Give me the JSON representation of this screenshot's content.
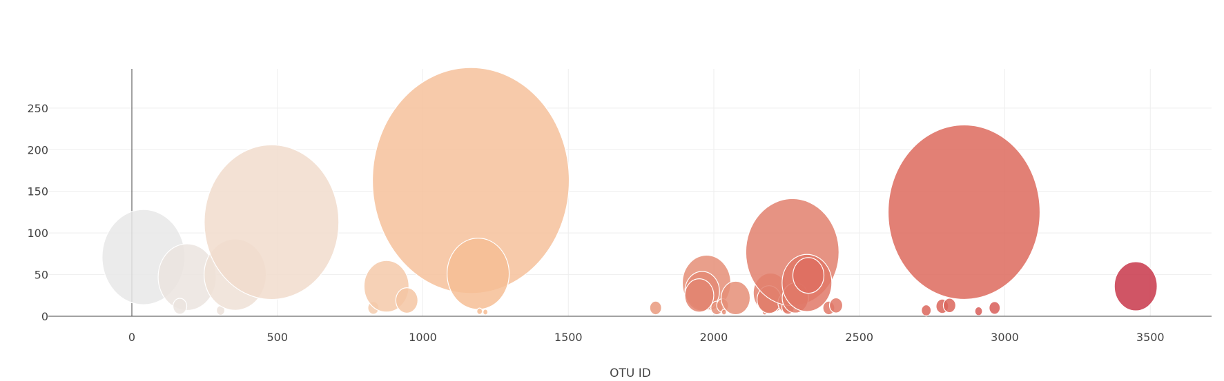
{
  "chart_data": {
    "type": "scatter",
    "subtype": "bubble",
    "xlabel": "OTU ID",
    "xlim": [
      -280,
      3700
    ],
    "ylim": [
      -5,
      300
    ],
    "x_ticks": [
      0,
      500,
      1000,
      1500,
      2000,
      2500,
      3000,
      3500
    ],
    "y_ticks": [
      0,
      50,
      100,
      150,
      200,
      250
    ],
    "grid": true,
    "colorscale": [
      "#e8e8e8",
      "#f4d8c4",
      "#f6b98d",
      "#e58e77",
      "#dd6a5d",
      "#c8374a"
    ],
    "points": [
      {
        "x": 40,
        "y": 71,
        "r": 12,
        "c": 0
      },
      {
        "x": 190,
        "y": 47,
        "r": 8.4,
        "c": 0.05
      },
      {
        "x": 165,
        "y": 12,
        "r": 2,
        "c": 0.05
      },
      {
        "x": 305,
        "y": 7,
        "r": 1.2,
        "c": 0.07
      },
      {
        "x": 355,
        "y": 50,
        "r": 9,
        "c": 0.1
      },
      {
        "x": 480,
        "y": 113,
        "r": 19.5,
        "c": 0.15
      },
      {
        "x": 830,
        "y": 10,
        "r": 1.6,
        "c": 0.28
      },
      {
        "x": 875,
        "y": 36,
        "r": 6.5,
        "c": 0.3
      },
      {
        "x": 945,
        "y": 19,
        "r": 3.2,
        "c": 0.32
      },
      {
        "x": 1165,
        "y": 163,
        "r": 28.5,
        "c": 0.35
      },
      {
        "x": 1190,
        "y": 51,
        "r": 9,
        "c": 0.37
      },
      {
        "x": 1195,
        "y": 6,
        "r": 0.8,
        "c": 0.38
      },
      {
        "x": 1215,
        "y": 5,
        "r": 0.7,
        "c": 0.38
      },
      {
        "x": 1800,
        "y": 10,
        "r": 1.7,
        "c": 0.55
      },
      {
        "x": 1975,
        "y": 40,
        "r": 7,
        "c": 0.6
      },
      {
        "x": 1960,
        "y": 30,
        "r": 5,
        "c": 0.62
      },
      {
        "x": 1950,
        "y": 25,
        "r": 4.2,
        "c": 0.65
      },
      {
        "x": 2010,
        "y": 10,
        "r": 1.7,
        "c": 0.6
      },
      {
        "x": 2030,
        "y": 13,
        "r": 1.7,
        "c": 0.6
      },
      {
        "x": 2075,
        "y": 22,
        "r": 4.2,
        "c": 0.6
      },
      {
        "x": 2035,
        "y": 5,
        "r": 0.7,
        "c": 0.6
      },
      {
        "x": 2175,
        "y": 5,
        "r": 0.7,
        "c": 0.65
      },
      {
        "x": 2195,
        "y": 28,
        "r": 5,
        "c": 0.68
      },
      {
        "x": 2190,
        "y": 20,
        "r": 3.5,
        "c": 0.7
      },
      {
        "x": 2250,
        "y": 16,
        "r": 2.5,
        "c": 0.68
      },
      {
        "x": 2255,
        "y": 11,
        "r": 1.8,
        "c": 0.72
      },
      {
        "x": 2270,
        "y": 77,
        "r": 13.5,
        "c": 0.68
      },
      {
        "x": 2280,
        "y": 22,
        "r": 3.8,
        "c": 0.7
      },
      {
        "x": 2320,
        "y": 40,
        "r": 7.2,
        "c": 0.72
      },
      {
        "x": 2325,
        "y": 49,
        "r": 4.5,
        "c": 0.78
      },
      {
        "x": 2395,
        "y": 10,
        "r": 1.7,
        "c": 0.72
      },
      {
        "x": 2420,
        "y": 13,
        "r": 1.9,
        "c": 0.72
      },
      {
        "x": 2730,
        "y": 7,
        "r": 1.4,
        "c": 0.82
      },
      {
        "x": 2785,
        "y": 12,
        "r": 1.8,
        "c": 0.82
      },
      {
        "x": 2810,
        "y": 13,
        "r": 1.8,
        "c": 0.82
      },
      {
        "x": 2860,
        "y": 125,
        "r": 22,
        "c": 0.8
      },
      {
        "x": 2910,
        "y": 6,
        "r": 1.1,
        "c": 0.85
      },
      {
        "x": 2965,
        "y": 10,
        "r": 1.6,
        "c": 0.85
      },
      {
        "x": 3450,
        "y": 36,
        "r": 6.2,
        "c": 1
      }
    ]
  }
}
